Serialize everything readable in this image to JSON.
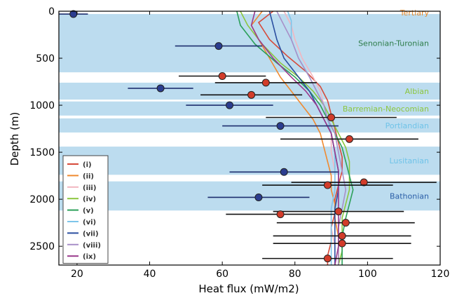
{
  "chart_data": {
    "type": "line",
    "xlabel": "Heat flux (mW/m2)",
    "ylabel": "Depth (m)",
    "xlim": [
      15,
      120
    ],
    "ylim": [
      2700,
      0
    ],
    "y_inverted": true,
    "x_ticks": [
      20,
      40,
      60,
      80,
      100,
      120
    ],
    "y_ticks": [
      0,
      500,
      1000,
      1500,
      2000,
      2500
    ],
    "grid": false,
    "legend_placement": "lower-left",
    "bands": [
      {
        "name": "Tertiary",
        "color": "#e88a2c",
        "from": 0,
        "to": 30,
        "shaded": false
      },
      {
        "name": "Senonian-Turonian",
        "color": "#2e7d4a",
        "from": 30,
        "to": 650,
        "shaded": true
      },
      {
        "name": "Albian",
        "color": "#8cc63e",
        "from": 760,
        "to": 940,
        "shaded": true
      },
      {
        "name": "Barremian-Neocomian",
        "color": "#8cc63e",
        "from": 960,
        "to": 1110,
        "shaded": true
      },
      {
        "name": "Portlandian",
        "color": "#6fc3e8",
        "from": 1140,
        "to": 1290,
        "shaded": true
      },
      {
        "name": "Lusitanian",
        "color": "#6fc3e8",
        "from": 1440,
        "to": 1740,
        "shaded": true
      },
      {
        "name": "Bathonian",
        "color": "#2b5fa8",
        "from": 1810,
        "to": 2120,
        "shaded": true
      }
    ],
    "band_fill": "#bcdcef",
    "series": [
      {
        "name": "(i)",
        "color": "#d64a3a",
        "points": [
          [
            74,
            0
          ],
          [
            70,
            120
          ],
          [
            73,
            300
          ],
          [
            78,
            480
          ],
          [
            83,
            640
          ],
          [
            87,
            800
          ],
          [
            89,
            950
          ],
          [
            90,
            1100
          ],
          [
            91,
            1250
          ],
          [
            92,
            1400
          ],
          [
            93,
            1550
          ],
          [
            93,
            1700
          ],
          [
            92,
            1850
          ],
          [
            91,
            2000
          ],
          [
            91,
            2150
          ],
          [
            90,
            2300
          ],
          [
            90,
            2450
          ],
          [
            89,
            2600
          ],
          [
            89,
            2700
          ]
        ]
      },
      {
        "name": "(ii)",
        "color": "#f08a30",
        "points": [
          [
            71,
            0
          ],
          [
            68,
            150
          ],
          [
            70,
            300
          ],
          [
            73,
            500
          ],
          [
            76,
            700
          ],
          [
            79,
            850
          ],
          [
            82,
            1000
          ],
          [
            85,
            1150
          ],
          [
            87,
            1300
          ],
          [
            88,
            1450
          ],
          [
            89,
            1600
          ],
          [
            90,
            1750
          ],
          [
            90,
            1900
          ],
          [
            91,
            2050
          ],
          [
            91,
            2200
          ],
          [
            92,
            2400
          ],
          [
            92,
            2550
          ],
          [
            92,
            2700
          ]
        ]
      },
      {
        "name": "(iii)",
        "color": "#f2b6c0",
        "points": [
          [
            77,
            0
          ],
          [
            79,
            150
          ],
          [
            80,
            300
          ],
          [
            82,
            500
          ],
          [
            85,
            700
          ],
          [
            87,
            850
          ],
          [
            88,
            1000
          ],
          [
            89,
            1150
          ],
          [
            90,
            1300
          ],
          [
            90,
            1500
          ],
          [
            91,
            1700
          ],
          [
            91,
            1900
          ],
          [
            90,
            2100
          ],
          [
            90,
            2300
          ],
          [
            91,
            2500
          ],
          [
            91,
            2700
          ]
        ]
      },
      {
        "name": "(iv)",
        "color": "#8cc63e",
        "points": [
          [
            65,
            0
          ],
          [
            67,
            150
          ],
          [
            71,
            350
          ],
          [
            76,
            550
          ],
          [
            81,
            700
          ],
          [
            85,
            850
          ],
          [
            88,
            1000
          ],
          [
            90,
            1150
          ],
          [
            92,
            1300
          ],
          [
            94,
            1450
          ],
          [
            95,
            1600
          ],
          [
            95,
            1750
          ],
          [
            95,
            1900
          ],
          [
            94,
            2050
          ],
          [
            93,
            2200
          ],
          [
            93,
            2400
          ],
          [
            93,
            2550
          ],
          [
            92,
            2700
          ]
        ]
      },
      {
        "name": "(v)",
        "color": "#2ca05a",
        "points": [
          [
            64,
            0
          ],
          [
            65,
            150
          ],
          [
            69,
            350
          ],
          [
            75,
            550
          ],
          [
            80,
            700
          ],
          [
            84,
            850
          ],
          [
            87,
            1000
          ],
          [
            89,
            1150
          ],
          [
            91,
            1300
          ],
          [
            93,
            1450
          ],
          [
            94,
            1600
          ],
          [
            95,
            1750
          ],
          [
            96,
            1900
          ],
          [
            95,
            2050
          ],
          [
            94,
            2200
          ],
          [
            93,
            2400
          ],
          [
            93,
            2550
          ],
          [
            93,
            2700
          ]
        ]
      },
      {
        "name": "(vi)",
        "color": "#7ec5ea",
        "points": [
          [
            78,
            0
          ],
          [
            79,
            100
          ],
          [
            79,
            300
          ],
          [
            81,
            500
          ],
          [
            84,
            700
          ],
          [
            86,
            850
          ],
          [
            88,
            1000
          ],
          [
            89,
            1150
          ],
          [
            90,
            1300
          ],
          [
            91,
            1500
          ],
          [
            91,
            1700
          ],
          [
            91,
            1900
          ],
          [
            90,
            2100
          ],
          [
            90,
            2300
          ],
          [
            90,
            2500
          ],
          [
            90,
            2700
          ]
        ]
      },
      {
        "name": "(vii)",
        "color": "#2b4fa0",
        "points": [
          [
            73,
            0
          ],
          [
            74,
            150
          ],
          [
            75,
            300
          ],
          [
            77,
            500
          ],
          [
            81,
            700
          ],
          [
            84,
            850
          ],
          [
            86,
            1000
          ],
          [
            88,
            1150
          ],
          [
            90,
            1300
          ],
          [
            91,
            1500
          ],
          [
            92,
            1700
          ],
          [
            92,
            1900
          ],
          [
            91,
            2100
          ],
          [
            91,
            2300
          ],
          [
            91,
            2500
          ],
          [
            91,
            2700
          ]
        ]
      },
      {
        "name": "(viii)",
        "color": "#a890c8",
        "points": [
          [
            75,
            0
          ],
          [
            77,
            150
          ],
          [
            79,
            300
          ],
          [
            81,
            500
          ],
          [
            84,
            700
          ],
          [
            86,
            850
          ],
          [
            88,
            1000
          ],
          [
            89,
            1150
          ],
          [
            91,
            1300
          ],
          [
            92,
            1500
          ],
          [
            93,
            1700
          ],
          [
            94,
            1900
          ],
          [
            93,
            2100
          ],
          [
            92,
            2300
          ],
          [
            92,
            2500
          ],
          [
            92,
            2700
          ]
        ]
      },
      {
        "name": "(ix)",
        "color": "#9a3a8c",
        "points": [
          [
            69,
            0
          ],
          [
            68,
            150
          ],
          [
            70,
            300
          ],
          [
            74,
            500
          ],
          [
            79,
            700
          ],
          [
            83,
            850
          ],
          [
            86,
            1000
          ],
          [
            88,
            1150
          ],
          [
            90,
            1300
          ],
          [
            91,
            1500
          ],
          [
            92,
            1700
          ],
          [
            92,
            1900
          ],
          [
            92,
            2100
          ],
          [
            92,
            2300
          ],
          [
            92,
            2500
          ],
          [
            91,
            2700
          ]
        ]
      }
    ],
    "measurements": [
      {
        "depth": 30,
        "value": 19,
        "err": 4,
        "color": "#2b3d8f"
      },
      {
        "depth": 370,
        "value": 59,
        "err": 12,
        "color": "#2b3d8f"
      },
      {
        "depth": 690,
        "value": 60,
        "err": 12,
        "color": "#d23c2a"
      },
      {
        "depth": 760,
        "value": 72,
        "err": 14,
        "color": "#d23c2a"
      },
      {
        "depth": 820,
        "value": 43,
        "err": 9,
        "color": "#2b3d8f"
      },
      {
        "depth": 890,
        "value": 68,
        "err": 14,
        "color": "#d23c2a"
      },
      {
        "depth": 1000,
        "value": 62,
        "err": 12,
        "color": "#2b3d8f"
      },
      {
        "depth": 1130,
        "value": 90,
        "err": 18,
        "color": "#d23c2a"
      },
      {
        "depth": 1220,
        "value": 76,
        "err": 16,
        "color": "#2b3d8f"
      },
      {
        "depth": 1360,
        "value": 95,
        "err": 19,
        "color": "#d23c2a"
      },
      {
        "depth": 1710,
        "value": 77,
        "err": 15,
        "color": "#2b3d8f"
      },
      {
        "depth": 1820,
        "value": 99,
        "err": 20,
        "color": "#d23c2a"
      },
      {
        "depth": 1850,
        "value": 89,
        "err": 18,
        "color": "#d23c2a"
      },
      {
        "depth": 1980,
        "value": 70,
        "err": 14,
        "color": "#2b3d8f"
      },
      {
        "depth": 2130,
        "value": 92,
        "err": 18,
        "color": "#d23c2a"
      },
      {
        "depth": 2160,
        "value": 76,
        "err": 15,
        "color": "#d23c2a"
      },
      {
        "depth": 2250,
        "value": 94,
        "err": 19,
        "color": "#d23c2a"
      },
      {
        "depth": 2390,
        "value": 93,
        "err": 19,
        "color": "#d23c2a"
      },
      {
        "depth": 2470,
        "value": 93,
        "err": 19,
        "color": "#d23c2a"
      },
      {
        "depth": 2630,
        "value": 89,
        "err": 18,
        "color": "#d23c2a"
      }
    ]
  }
}
